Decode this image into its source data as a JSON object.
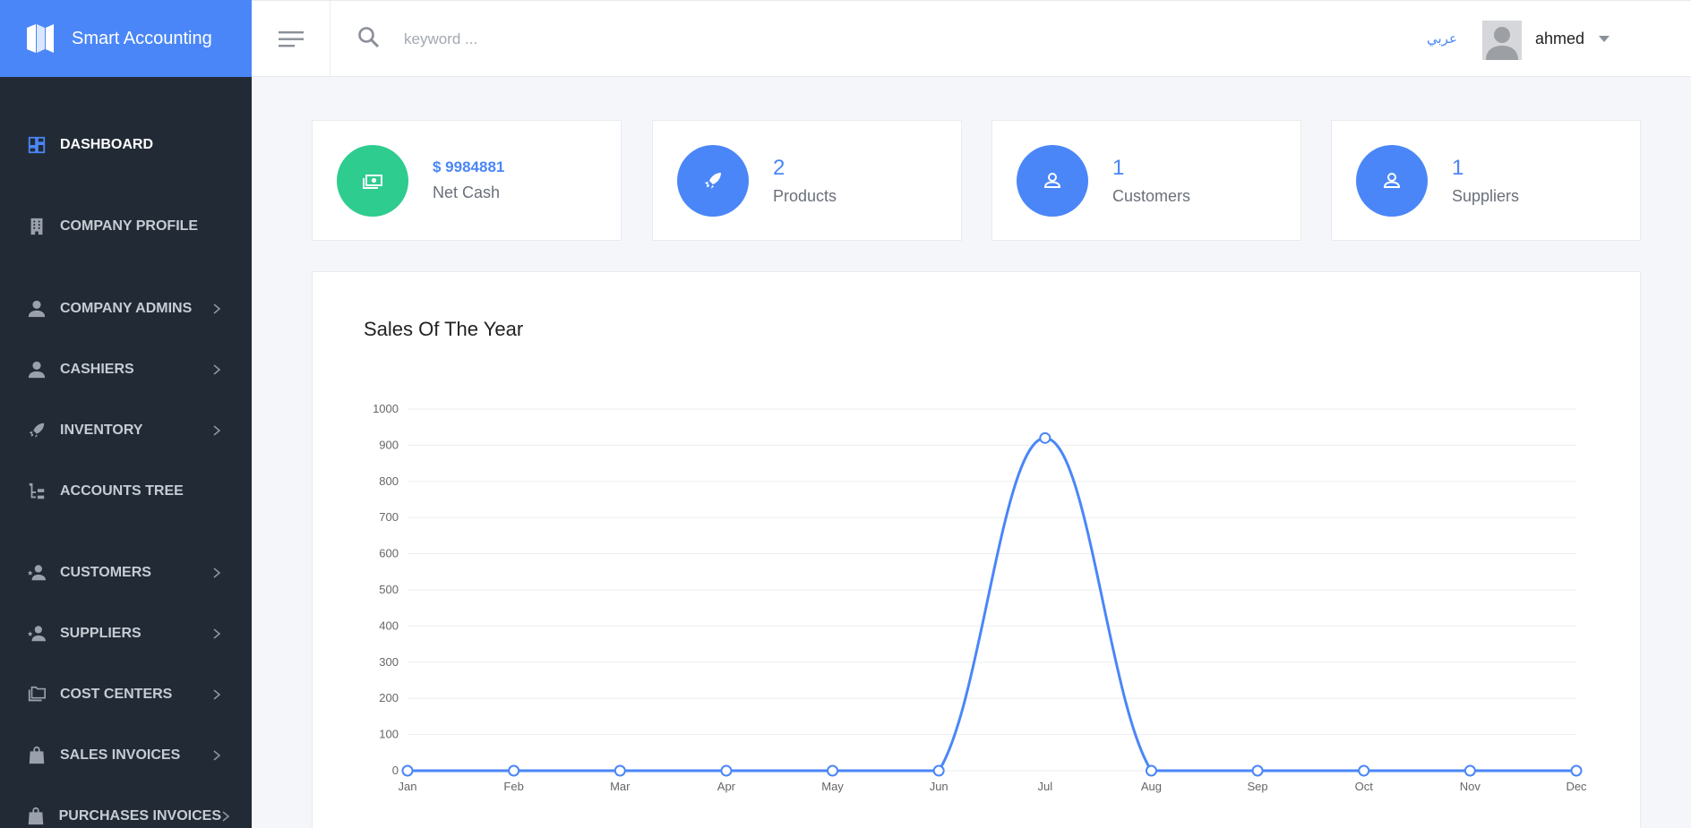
{
  "brand": {
    "title": "Smart Accounting"
  },
  "header": {
    "search_placeholder": "keyword ...",
    "lang": "عربي",
    "username": "ahmed"
  },
  "sidebar": {
    "items": [
      {
        "label": "DASHBOARD",
        "icon": "dashboard-icon",
        "active": true,
        "has_children": false
      },
      {
        "label": "COMPANY PROFILE",
        "icon": "building-icon",
        "active": false,
        "has_children": false
      },
      {
        "label": "COMPANY ADMINS",
        "icon": "person-icon",
        "active": false,
        "has_children": true
      },
      {
        "label": "CASHIERS",
        "icon": "person-icon",
        "active": false,
        "has_children": true
      },
      {
        "label": "INVENTORY",
        "icon": "rocket-icon",
        "active": false,
        "has_children": true
      },
      {
        "label": "ACCOUNTS TREE",
        "icon": "tree-icon",
        "active": false,
        "has_children": false
      },
      {
        "label": "CUSTOMERS",
        "icon": "person-star-icon",
        "active": false,
        "has_children": true
      },
      {
        "label": "SUPPLIERS",
        "icon": "person-star-icon",
        "active": false,
        "has_children": true
      },
      {
        "label": "COST CENTERS",
        "icon": "folders-icon",
        "active": false,
        "has_children": true
      },
      {
        "label": "SALES INVOICES",
        "icon": "shopping-bag-icon",
        "active": false,
        "has_children": true
      },
      {
        "label": "PURCHASES INVOICES",
        "icon": "shopping-bag-icon",
        "active": false,
        "has_children": true
      }
    ]
  },
  "cards": [
    {
      "value": "$ 9984881",
      "label": "Net Cash",
      "icon": "money-icon",
      "color": "#2ecc8f"
    },
    {
      "value": "2",
      "label": "Products",
      "icon": "rocket-icon",
      "color": "#4a86f7"
    },
    {
      "value": "1",
      "label": "Customers",
      "icon": "user-icon",
      "color": "#4a86f7"
    },
    {
      "value": "1",
      "label": "Suppliers",
      "icon": "user-icon",
      "color": "#4a86f7"
    }
  ],
  "chart_data": {
    "type": "line",
    "title": "Sales Of The Year",
    "categories": [
      "Jan",
      "Feb",
      "Mar",
      "Apr",
      "May",
      "Jun",
      "Jul",
      "Aug",
      "Sep",
      "Oct",
      "Nov",
      "Dec"
    ],
    "values": [
      0,
      0,
      0,
      0,
      0,
      0,
      920,
      0,
      0,
      0,
      0,
      0
    ],
    "ylim": [
      0,
      1000
    ],
    "yticks": [
      "0",
      "100",
      "200",
      "300",
      "400",
      "500",
      "600",
      "700",
      "800",
      "900",
      "1000"
    ],
    "xlabel": "",
    "ylabel": "",
    "grid": true,
    "color": "#4a86f7"
  }
}
